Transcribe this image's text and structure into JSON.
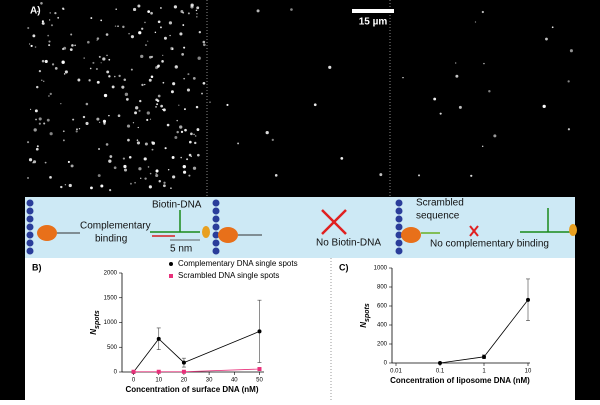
{
  "panel_labels": [
    "A)",
    "B)",
    "C)"
  ],
  "scale_bar": "15 µm",
  "schematic": {
    "biotin_dna": "Biotin-DNA",
    "complementary": [
      "Complementary",
      "binding"
    ],
    "scale": "5 nm",
    "no_biotin": "No Biotin-DNA",
    "scrambled": [
      "Scrambled",
      "sequence"
    ],
    "no_complementary": "No complementary binding"
  },
  "chart_data": [
    {
      "type": "line",
      "x_label": "Concentration of surface DNA (nM)",
      "y_label": "N",
      "y_label_sub": "spots",
      "x": [
        0,
        10,
        20,
        50
      ],
      "xlim": [
        -3,
        51
      ],
      "xticks": [
        0,
        10,
        20,
        30,
        40,
        50
      ],
      "ylim": [
        0,
        2000
      ],
      "yticks": [
        0,
        500,
        1000,
        1500,
        2000
      ],
      "series": [
        {
          "name": "Complementary DNA single spots",
          "color": "#000000",
          "marker": "circle",
          "values": [
            0,
            670,
            190,
            820
          ],
          "errors": [
            0,
            220,
            90,
            630
          ]
        },
        {
          "name": "Scrambled DNA single spots",
          "color": "#e8307a",
          "marker": "square",
          "values": [
            5,
            5,
            5,
            60
          ],
          "errors": [
            0,
            0,
            0,
            0
          ]
        }
      ]
    },
    {
      "type": "line",
      "x_label": "Concentration of liposome DNA (nM)",
      "y_label": "N",
      "y_label_sub": "spots",
      "xscale": "log",
      "x": [
        0.1,
        1,
        10
      ],
      "xlim": [
        0.01,
        10
      ],
      "xticks": [
        0.01,
        0.1,
        1,
        10
      ],
      "ylim": [
        0,
        1000
      ],
      "yticks": [
        0,
        200,
        400,
        600,
        800,
        1000
      ],
      "series": [
        {
          "name": "Liposome DNA",
          "color": "#000000",
          "marker": "circle",
          "values": [
            0,
            65,
            665
          ],
          "errors": [
            0,
            20,
            220
          ]
        }
      ]
    }
  ]
}
